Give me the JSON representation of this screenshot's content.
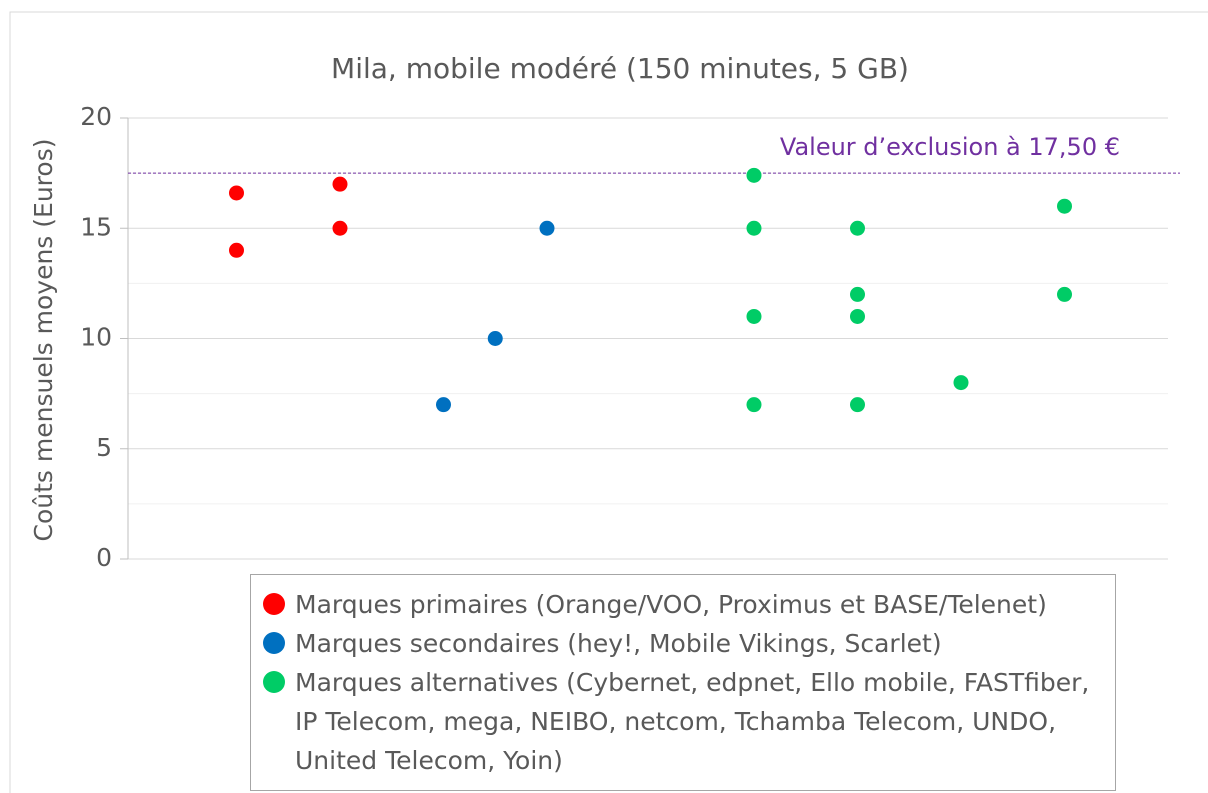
{
  "chart_data": {
    "type": "scatter",
    "title": "Mila, mobile modéré (150 minutes, 5 GB)",
    "y_label": "Coûts mensuels moyens (Euros)",
    "xlim": [
      0,
      10
    ],
    "ylim": [
      0,
      20
    ],
    "yticks": [
      0,
      5,
      10,
      15,
      20
    ],
    "grid": true,
    "minor_grid": true,
    "series": [
      {
        "name": "Marques primaires (Orange/VOO, Proximus et BASE/Telenet)",
        "color": "#ff0000",
        "x": [
          1,
          1,
          2,
          2
        ],
        "values": [
          16.6,
          14,
          17,
          15
        ]
      },
      {
        "name": "Marques secondaires (hey!, Mobile Vikings, Scarlet)",
        "color": "#0070c0",
        "x": [
          3,
          3.5,
          4
        ],
        "values": [
          7,
          10,
          15
        ]
      },
      {
        "name": "Marques alternatives (Cybernet, edpnet, Ello mobile, FASTfiber, IP Telecom, mega, NEIBO, netcom, Tchamba Telecom, UNDO, United Telecom, Yoin)",
        "color": "#00cc66",
        "x": [
          6,
          6,
          6,
          6,
          7,
          7,
          7,
          7,
          8,
          9,
          9
        ],
        "values": [
          17.4,
          15,
          11,
          7,
          15,
          12,
          11,
          7,
          8,
          16,
          12
        ]
      }
    ],
    "reference_line": {
      "value": 17.5,
      "label": "Valeur d’exclusion à 17,50 €",
      "color": "#7030a0"
    },
    "legend": "bottom"
  }
}
